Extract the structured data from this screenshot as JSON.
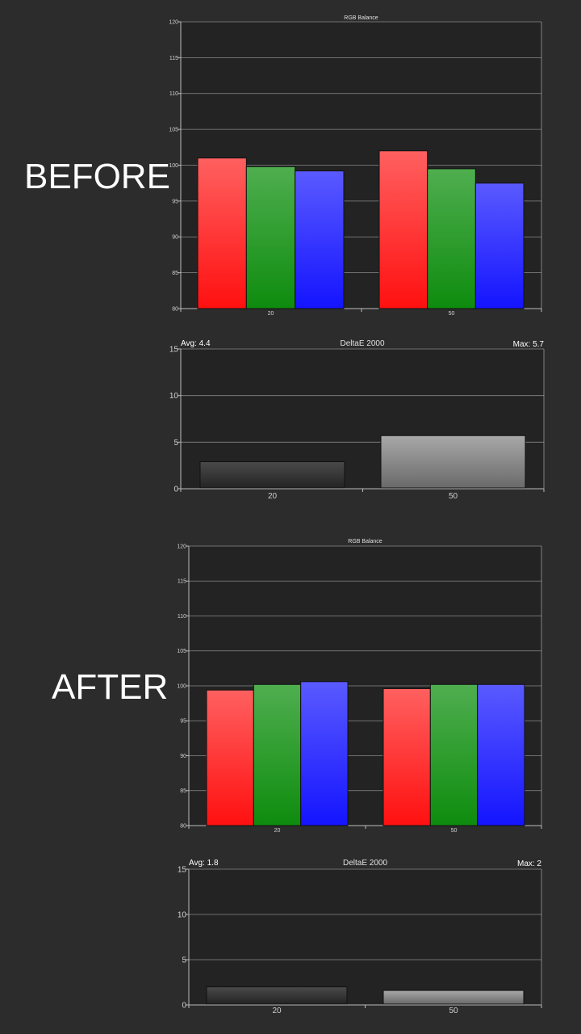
{
  "labels": {
    "before": "BEFORE",
    "after": "AFTER"
  },
  "colors": {
    "background": "#2c2c2c",
    "plot_area": "#232323",
    "grid": "#8a8a8a",
    "red": "#ff1010",
    "green": "#0e8c0e",
    "blue": "#1414ff",
    "delta_dark": "#404040",
    "delta_light": "#8a8a8a"
  },
  "chart_data": [
    {
      "type": "bar",
      "id": "before-rgb",
      "title": "RGB Balance",
      "categories": [
        "20",
        "50"
      ],
      "series": [
        {
          "values": [
            101.0,
            102.0
          ],
          "color": "red"
        },
        {
          "values": [
            99.8,
            99.5
          ],
          "color": "green"
        },
        {
          "values": [
            99.2,
            97.5
          ],
          "color": "blue"
        }
      ],
      "ylim": [
        80,
        120
      ],
      "yticks": [
        "80",
        "85",
        "90",
        "95",
        "100",
        "105",
        "110",
        "115",
        "120"
      ],
      "grid": true
    },
    {
      "type": "bar",
      "id": "before-delta",
      "title": "DeltaE 2000",
      "avg_label": "Avg: 4.4",
      "max_label": "Max: 5.7",
      "categories": [
        "20",
        "50"
      ],
      "values": [
        2.9,
        5.7
      ],
      "ylim": [
        0,
        15
      ],
      "yticks": [
        "0",
        "5",
        "10",
        "15"
      ],
      "grid": true
    },
    {
      "type": "bar",
      "id": "after-rgb",
      "title": "RGB Balance",
      "categories": [
        "20",
        "50"
      ],
      "series": [
        {
          "values": [
            99.4,
            99.6
          ],
          "color": "red"
        },
        {
          "values": [
            100.2,
            100.2
          ],
          "color": "green"
        },
        {
          "values": [
            100.6,
            100.2
          ],
          "color": "blue"
        }
      ],
      "ylim": [
        80,
        120
      ],
      "yticks": [
        "80",
        "85",
        "90",
        "95",
        "100",
        "105",
        "110",
        "115",
        "120"
      ],
      "grid": true
    },
    {
      "type": "bar",
      "id": "after-delta",
      "title": "DeltaE 2000",
      "avg_label": "Avg: 1.8",
      "max_label": "Max: 2",
      "categories": [
        "20",
        "50"
      ],
      "values": [
        2.0,
        1.6
      ],
      "ylim": [
        0,
        15
      ],
      "yticks": [
        "0",
        "5",
        "10",
        "15"
      ],
      "grid": true
    }
  ]
}
